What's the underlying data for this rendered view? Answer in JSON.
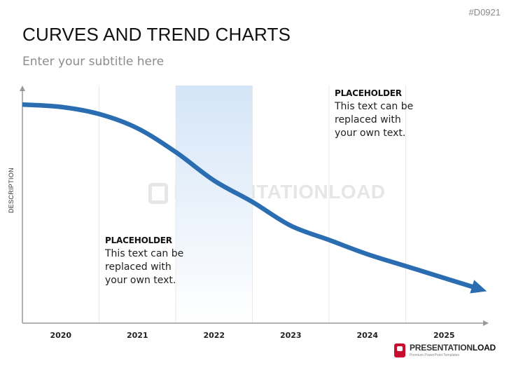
{
  "slide_id": "#D0921",
  "title": "CURVES AND TREND CHARTS",
  "subtitle": "Enter your subtitle here",
  "watermark": "PRESENTATIONLOAD",
  "logo": {
    "brand_light": "PRESENTATION",
    "brand_bold": "LOAD",
    "tagline": "Premium PowerPoint Templates",
    "color": "#c8102e"
  },
  "placeholders": [
    {
      "title": "PLACEHOLDER",
      "text": "This text can be replaced with your own text."
    },
    {
      "title": "PLACEHOLDER",
      "text": "This text can be replaced with your own text."
    }
  ],
  "chart_data": {
    "type": "line",
    "ylabel": "DESCRIPTION",
    "xlabel": "",
    "categories": [
      "2020",
      "2021",
      "2022",
      "2023",
      "2024",
      "2025"
    ],
    "highlight_category": "2022",
    "series": [
      {
        "name": "",
        "color": "#2a6db0",
        "x": [
          2019.5,
          2020.0,
          2020.5,
          2021.0,
          2021.5,
          2022.0,
          2022.5,
          2023.0,
          2023.5,
          2024.0,
          2024.5,
          2025.0,
          2025.4
        ],
        "y": [
          0.92,
          0.91,
          0.88,
          0.82,
          0.72,
          0.6,
          0.51,
          0.41,
          0.35,
          0.29,
          0.24,
          0.19,
          0.15
        ]
      }
    ],
    "end_arrow": true,
    "ylim": [
      0,
      1
    ],
    "grid": "vertical",
    "colors": {
      "highlight": "#dbe9f8",
      "axis": "#999999",
      "line": "#2a6db0"
    }
  }
}
